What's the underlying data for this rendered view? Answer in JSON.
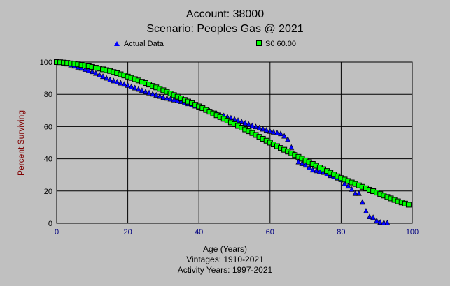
{
  "chart_data": {
    "type": "scatter",
    "title": "Account: 38000",
    "subtitle": "Scenario: Peoples Gas @ 2021",
    "xlabel": "Age (Years)",
    "ylabel": "Percent Surviving",
    "notes": [
      "Vintages: 1910-2021",
      "Activity Years: 1997-2021"
    ],
    "xlim": [
      0,
      100
    ],
    "ylim": [
      0,
      100
    ],
    "xticks": [
      0,
      20,
      40,
      60,
      80,
      100
    ],
    "yticks": [
      0,
      20,
      40,
      60,
      80,
      100
    ],
    "grid": true,
    "legend_position": "top",
    "series": [
      {
        "name": "Actual Data",
        "marker": "triangle",
        "color": "#0000ff",
        "x_start": 0,
        "values": [
          100,
          99.7,
          99.3,
          98.8,
          98.2,
          97.5,
          96.8,
          96.1,
          95.4,
          94.7,
          94,
          93,
          92,
          91,
          90,
          89,
          88.3,
          87.6,
          86.9,
          86.2,
          85.5,
          84.7,
          83.9,
          83.1,
          82.3,
          81.5,
          80.8,
          80.1,
          79.4,
          78.7,
          78,
          77.5,
          77,
          76.5,
          76,
          75.5,
          74.8,
          74.1,
          73.4,
          72.7,
          72,
          71.2,
          70.4,
          69.6,
          68.8,
          68,
          67.3,
          66.6,
          65.9,
          65.2,
          64.5,
          63.7,
          62.9,
          62.1,
          61.3,
          60.5,
          59.8,
          59.1,
          58.4,
          57.7,
          57,
          56.5,
          56,
          55.5,
          54,
          52,
          47,
          43,
          38,
          37,
          36,
          34.5,
          33,
          32.5,
          32,
          31.5,
          30.5,
          29.5,
          29,
          28,
          27,
          24.5,
          23,
          21,
          18.5,
          18.5,
          13,
          7.5,
          4,
          3.5,
          1.5,
          0.5,
          0.3,
          0.2
        ]
      },
      {
        "name": "S0 60.00",
        "marker": "square",
        "color": "#00ff00",
        "x_start": 0,
        "values": [
          100,
          99.9,
          99.7,
          99.5,
          99.2,
          99,
          98.6,
          98.2,
          97.8,
          97.4,
          97,
          96.5,
          96,
          95.5,
          95,
          94.5,
          93.8,
          93.1,
          92.4,
          91.7,
          91,
          90.2,
          89.4,
          88.6,
          87.8,
          87,
          86.1,
          85.2,
          84.3,
          83.4,
          82.5,
          81.5,
          80.5,
          79.5,
          78.5,
          77.5,
          76.5,
          75.5,
          74.5,
          73.5,
          72.5,
          71.4,
          70.3,
          69.2,
          68.1,
          67,
          65.9,
          64.8,
          63.7,
          62.6,
          61.5,
          60.4,
          59.3,
          58.2,
          57.1,
          56,
          54.8,
          53.6,
          52.4,
          51.2,
          50,
          48.9,
          47.8,
          46.7,
          45.6,
          44.5,
          43.4,
          42.3,
          41.2,
          40.1,
          39,
          37.9,
          36.8,
          35.7,
          34.6,
          33.5,
          32.4,
          31.3,
          30.2,
          29.1,
          28,
          27.1,
          26.2,
          25.3,
          24.4,
          23.5,
          22.6,
          21.7,
          20.8,
          19.9,
          19,
          18.1,
          17.2,
          16.3,
          15.4,
          14.5,
          13.6,
          12.9,
          12.2,
          11.5
        ]
      }
    ]
  }
}
